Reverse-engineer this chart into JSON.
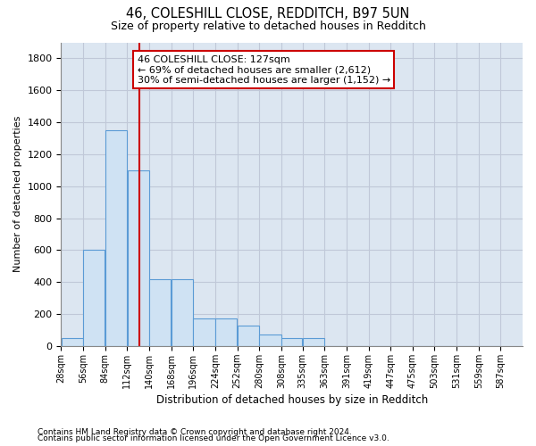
{
  "title1": "46, COLESHILL CLOSE, REDDITCH, B97 5UN",
  "title2": "Size of property relative to detached houses in Redditch",
  "xlabel": "Distribution of detached houses by size in Redditch",
  "ylabel": "Number of detached properties",
  "footer1": "Contains HM Land Registry data © Crown copyright and database right 2024.",
  "footer2": "Contains public sector information licensed under the Open Government Licence v3.0.",
  "bin_edges": [
    28,
    56,
    84,
    112,
    140,
    168,
    196,
    224,
    252,
    280,
    308,
    335,
    363,
    391,
    419,
    447,
    475,
    503,
    531,
    559,
    587
  ],
  "bar_heights": [
    50,
    600,
    1350,
    1100,
    420,
    420,
    175,
    175,
    130,
    70,
    50,
    50,
    0,
    0,
    0,
    0,
    0,
    0,
    0,
    0
  ],
  "bar_color": "#cfe2f3",
  "bar_edge_color": "#5b9bd5",
  "vline_x": 127,
  "vline_color": "#cc0000",
  "annotation_title": "46 COLESHILL CLOSE: 127sqm",
  "annotation_line2": "← 69% of detached houses are smaller (2,612)",
  "annotation_line3": "30% of semi-detached houses are larger (1,152) →",
  "annotation_box_color": "#cc0000",
  "ylim": [
    0,
    1900
  ],
  "yticks": [
    0,
    200,
    400,
    600,
    800,
    1000,
    1200,
    1400,
    1600,
    1800
  ],
  "x_tick_labels": [
    "28sqm",
    "56sqm",
    "84sqm",
    "112sqm",
    "140sqm",
    "168sqm",
    "196sqm",
    "224sqm",
    "252sqm",
    "280sqm",
    "308sqm",
    "335sqm",
    "363sqm",
    "391sqm",
    "419sqm",
    "447sqm",
    "475sqm",
    "503sqm",
    "531sqm",
    "559sqm",
    "587sqm"
  ],
  "background_color": "#ffffff",
  "plot_bg_color": "#dce6f1",
  "grid_color": "#c0c8d8"
}
